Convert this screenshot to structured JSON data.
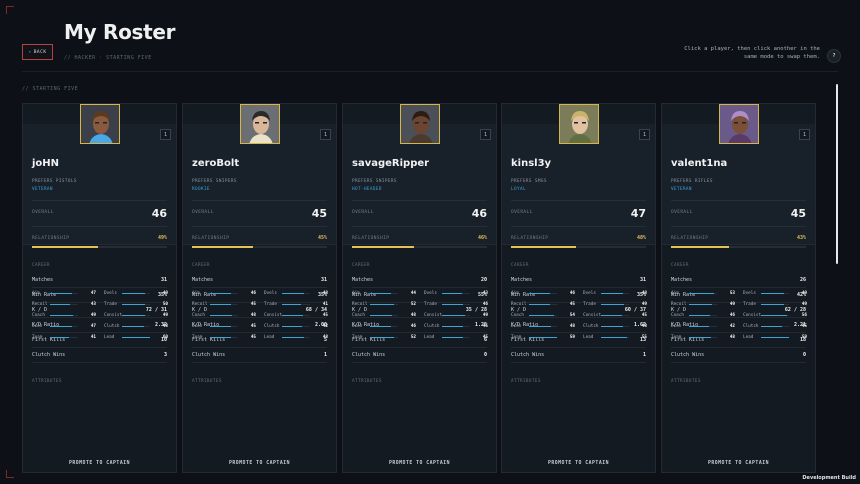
{
  "header": {
    "back_label": "BACK",
    "title": "My Roster",
    "breadcrumb": "// HACKER · STARTING FIVE",
    "hint": "Click a player, then click another in the same mode to swap them.",
    "help_label": "?"
  },
  "section_label": "// STARTING FIVE",
  "labels": {
    "overall": "OVERALL",
    "relationship": "RELATIONSHIP",
    "career": "CAREER",
    "attributes": "ATTRIBUTES",
    "promote": "PROMOTE TO CAPTAIN"
  },
  "stat_labels": [
    "Matches",
    "Win Rate",
    "K / D",
    "K/D Ratio",
    "First Kills",
    "Clutch Wins"
  ],
  "attr_labels": [
    "Aim",
    "Recoil",
    "Coach",
    "Econ",
    "Team",
    "Dvels",
    "Trade",
    "Consist",
    "Clutch",
    "Lead"
  ],
  "players": [
    {
      "badge": "1",
      "name": "joHN",
      "prefers": "PREFERS PISTOLS",
      "trait": "VETERAN",
      "overall": "46",
      "relationship": "49%",
      "relationship_pct": 49,
      "stats": [
        "31",
        "35%",
        "72 / 31",
        "2.32",
        "10",
        "3"
      ],
      "attrs": [
        "47",
        "43",
        "49",
        "47",
        "41",
        "49",
        "50",
        "49",
        "48",
        "60"
      ],
      "avatar": {
        "bg": "#3b3f4a",
        "hair": "#5b3a22",
        "skin": "#8a5a3e",
        "accent": "#4aa8e8"
      }
    },
    {
      "badge": "1",
      "name": "zeroBolt",
      "prefers": "PREFERS SNIPERS",
      "trait": "ROOKIE",
      "overall": "45",
      "relationship": "45%",
      "relationship_pct": 45,
      "stats": [
        "31",
        "35%",
        "68 / 34",
        "2.00",
        "5",
        "1"
      ],
      "attrs": [
        "46",
        "45",
        "48",
        "45",
        "45",
        "48",
        "41",
        "45",
        "42",
        "48"
      ],
      "avatar": {
        "bg": "#6b6e72",
        "hair": "#2a2a2a",
        "skin": "#d9b89a",
        "accent": "#e8e2c8"
      }
    },
    {
      "badge": "1",
      "name": "savageRipper",
      "prefers": "PREFERS SNIPERS",
      "trait": "HOT-HEADED",
      "overall": "46",
      "relationship": "46%",
      "relationship_pct": 46,
      "stats": [
        "20",
        "55%",
        "35 / 28",
        "1.25",
        "6",
        "0"
      ],
      "attrs": [
        "44",
        "52",
        "48",
        "46",
        "52",
        "43",
        "46",
        "49",
        "45",
        "45"
      ],
      "avatar": {
        "bg": "#4b4f57",
        "hair": "#2b1c14",
        "skin": "#6b4532",
        "accent": "#4a3a30"
      }
    },
    {
      "badge": "1",
      "name": "kinsl3y",
      "prefers": "PREFERS SMGS",
      "trait": "LOYAL",
      "overall": "47",
      "relationship": "48%",
      "relationship_pct": 48,
      "stats": [
        "31",
        "35%",
        "60 / 37",
        "1.62",
        "13",
        "1"
      ],
      "attrs": [
        "46",
        "45",
        "54",
        "48",
        "59",
        "48",
        "49",
        "45",
        "48",
        "55"
      ],
      "avatar": {
        "bg": "#7a7c5a",
        "hair": "#c9b36a",
        "skin": "#e0c2a0",
        "accent": "#5f6e43"
      }
    },
    {
      "badge": "1",
      "name": "valent1na",
      "prefers": "PREFERS RIFLES",
      "trait": "VETERAN",
      "overall": "45",
      "relationship": "43%",
      "relationship_pct": 43,
      "stats": [
        "26",
        "42%",
        "62 / 28",
        "2.21",
        "18",
        "0"
      ],
      "attrs": [
        "53",
        "49",
        "46",
        "42",
        "48",
        "49",
        "49",
        "56",
        "45",
        "59"
      ],
      "avatar": {
        "bg": "#6a5a8a",
        "hair": "#b08cc8",
        "skin": "#7a5038",
        "accent": "#5a3a68"
      }
    }
  ],
  "footer": {
    "dev_build": "Development Build"
  }
}
